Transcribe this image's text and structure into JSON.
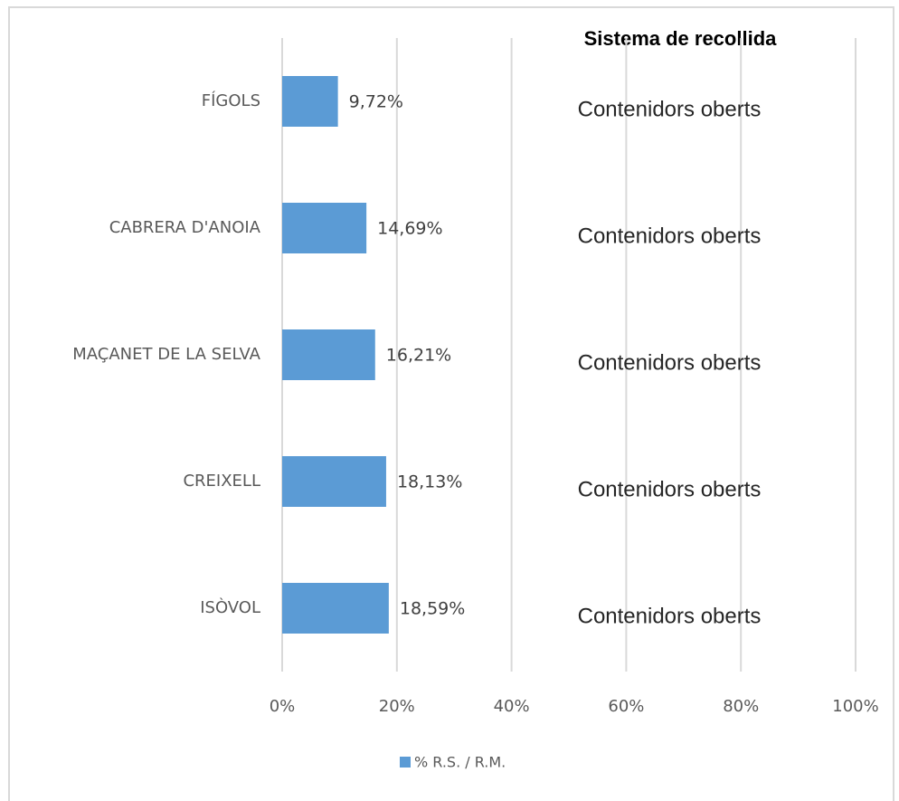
{
  "chart_data": {
    "type": "bar",
    "orientation": "horizontal",
    "categories": [
      "FÍGOLS",
      "CABRERA D'ANOIA",
      "MAÇANET DE LA SELVA",
      "CREIXELL",
      "ISÒVOL"
    ],
    "series": [
      {
        "name": "% R.S. / R.M.",
        "color": "#5b9bd5",
        "values": [
          9.72,
          14.69,
          16.21,
          18.13,
          18.59
        ],
        "value_labels": [
          "9,72%",
          "14,69%",
          "16,21%",
          "18,13%",
          "18,59%"
        ]
      }
    ],
    "xlim": [
      0,
      100
    ],
    "xticks": [
      {
        "value": 0,
        "label": "0%"
      },
      {
        "value": 20,
        "label": "20%"
      },
      {
        "value": 40,
        "label": "40%"
      },
      {
        "value": 60,
        "label": "60%"
      },
      {
        "value": 80,
        "label": "80%"
      },
      {
        "value": 100,
        "label": "100%"
      }
    ],
    "grid": true,
    "legend": "bottom",
    "side_column": {
      "title": "Sistema de recollida",
      "values": [
        "Contenidors oberts",
        "Contenidors oberts",
        "Contenidors oberts",
        "Contenidors oberts",
        "Contenidors oberts"
      ]
    }
  }
}
